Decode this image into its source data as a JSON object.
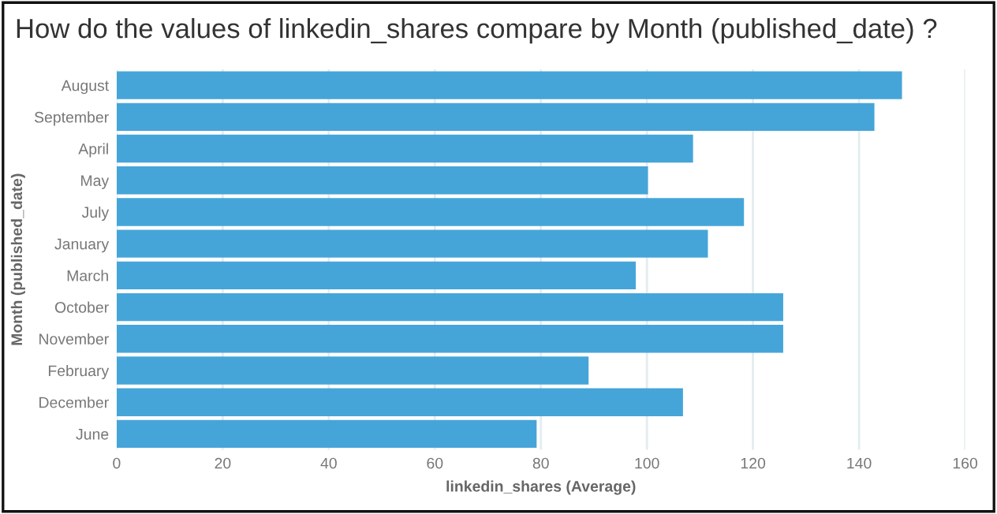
{
  "chart_data": {
    "type": "bar",
    "orientation": "horizontal",
    "title": "How do the values of linkedin_shares compare by Month (published_date) ?",
    "xlabel": "linkedin_shares (Average)",
    "ylabel": "Month (published_date)",
    "categories": [
      "August",
      "September",
      "April",
      "May",
      "July",
      "January",
      "March",
      "October",
      "November",
      "February",
      "December",
      "June"
    ],
    "values": [
      148.1,
      142.9,
      108.7,
      100.2,
      118.3,
      111.5,
      97.9,
      125.7,
      125.7,
      89.0,
      106.8,
      79.2
    ],
    "color": "#45a5d9",
    "xlim": [
      0,
      160
    ],
    "xticks": [
      0,
      20,
      40,
      60,
      80,
      100,
      120,
      140,
      160
    ],
    "grid": "x",
    "legend": false
  }
}
